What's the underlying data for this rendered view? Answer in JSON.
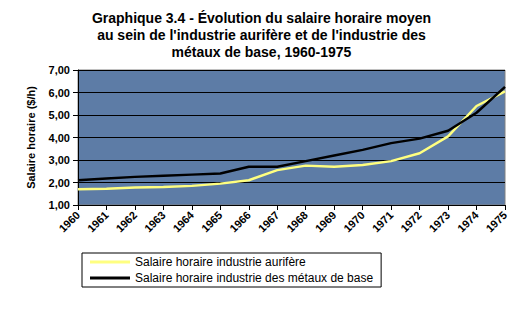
{
  "chart_data": {
    "type": "line",
    "title": "Graphique 3.4 - Évolution du salaire horaire moyen\nau sein de l'industrie aurifère et de l'industrie des\nmétaux de base, 1960-1975",
    "y_label": "Salaire horaire ($/h)",
    "categories": [
      "1960",
      "1961",
      "1962",
      "1963",
      "1964",
      "1965",
      "1966",
      "1967",
      "1968",
      "1969",
      "1970",
      "1971",
      "1972",
      "1973",
      "1974",
      "1975"
    ],
    "series": [
      {
        "name": "Salaire horaire industrie aurifère",
        "color": "#ffff80",
        "values": [
          1.7,
          1.72,
          1.78,
          1.8,
          1.85,
          1.95,
          2.1,
          2.55,
          2.75,
          2.7,
          2.78,
          2.95,
          3.3,
          4.05,
          5.4,
          6.05
        ]
      },
      {
        "name": "Salaire horaire industrie des métaux de base",
        "color": "#000000",
        "values": [
          2.1,
          2.18,
          2.25,
          2.3,
          2.35,
          2.4,
          2.7,
          2.7,
          2.95,
          3.2,
          3.45,
          3.75,
          3.95,
          4.3,
          5.1,
          6.25
        ]
      }
    ],
    "ylim": [
      1,
      7
    ],
    "yticks": [
      {
        "value": 1,
        "label": "1,00"
      },
      {
        "value": 2,
        "label": "2,00"
      },
      {
        "value": 3,
        "label": "3,00"
      },
      {
        "value": 4,
        "label": "4,00"
      },
      {
        "value": 5,
        "label": "5,00"
      },
      {
        "value": 6,
        "label": "6,00"
      },
      {
        "value": 7,
        "label": "7,00"
      }
    ],
    "grid": true,
    "legend": "bottom"
  }
}
